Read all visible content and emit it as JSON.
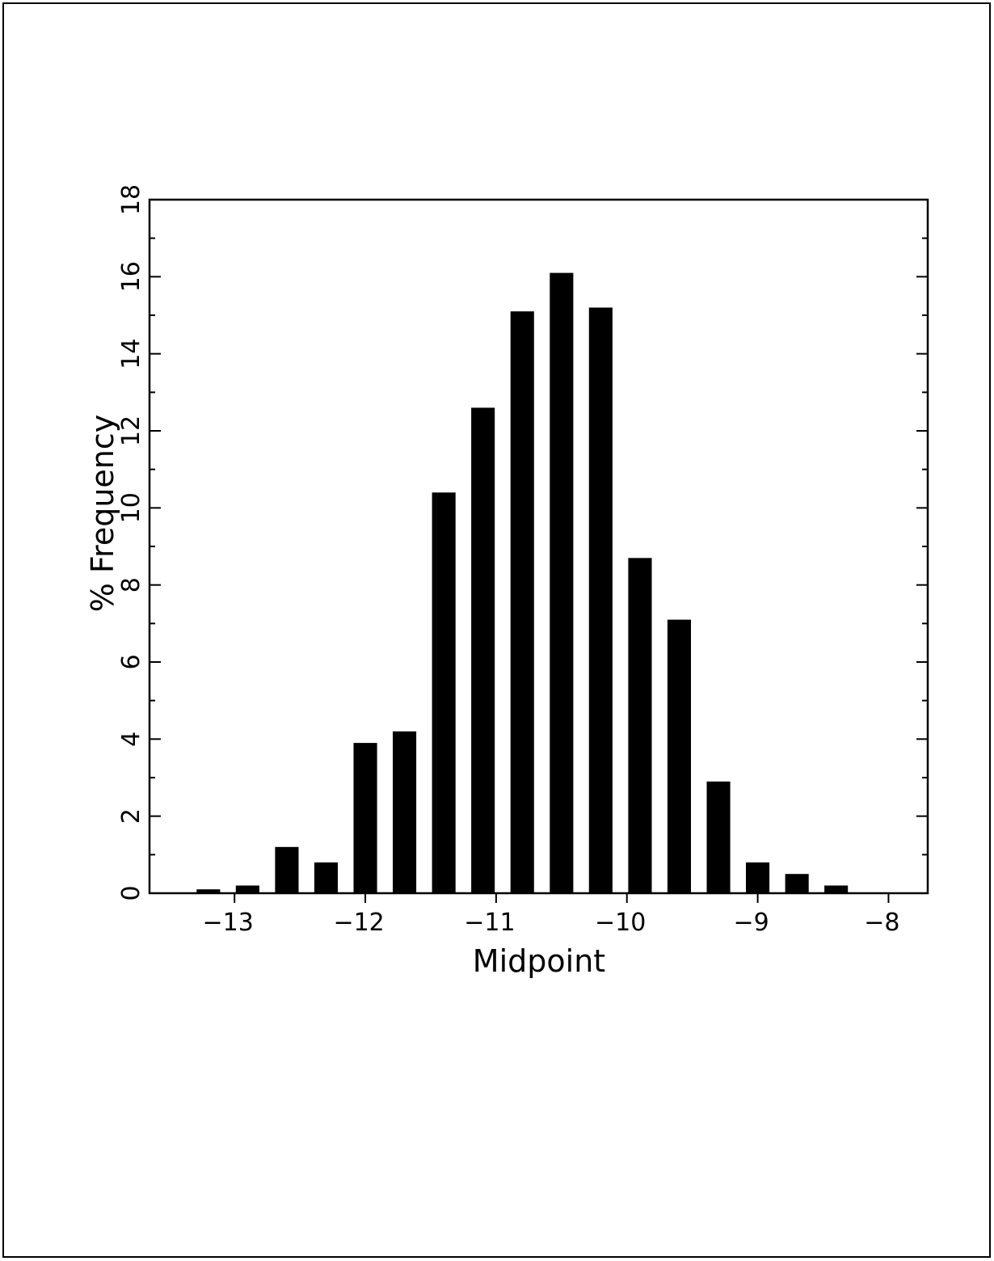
{
  "chart_data": {
    "type": "bar",
    "title": "",
    "xlabel": "Midpoint",
    "ylabel": "% Frequency",
    "xlim": [
      -13.65,
      -7.7
    ],
    "ylim": [
      0,
      18
    ],
    "x_ticks": [
      -13,
      -12,
      -11,
      -10,
      -9,
      -8
    ],
    "x_tick_labels": [
      "-13",
      "-12",
      "-11",
      "-10",
      "-9",
      "-8"
    ],
    "y_ticks": [
      0,
      2,
      4,
      6,
      8,
      10,
      12,
      14,
      16,
      18
    ],
    "y_tick_labels": [
      "0",
      "2",
      "4",
      "6",
      "8",
      "10",
      "12",
      "14",
      "16",
      "18"
    ],
    "bar_color": "#000000",
    "grid": false,
    "legend": "none",
    "x": [
      -13.2,
      -12.9,
      -12.6,
      -12.3,
      -12.0,
      -11.7,
      -11.4,
      -11.1,
      -10.8,
      -10.5,
      -10.2,
      -9.9,
      -9.6,
      -9.3,
      -9.0,
      -8.7,
      -8.4,
      -8.1
    ],
    "values": [
      0.1,
      0.2,
      1.2,
      0.8,
      3.9,
      4.2,
      10.4,
      12.6,
      15.1,
      16.1,
      15.2,
      8.7,
      7.1,
      2.9,
      0.8,
      0.5,
      0.2,
      0.0
    ]
  }
}
